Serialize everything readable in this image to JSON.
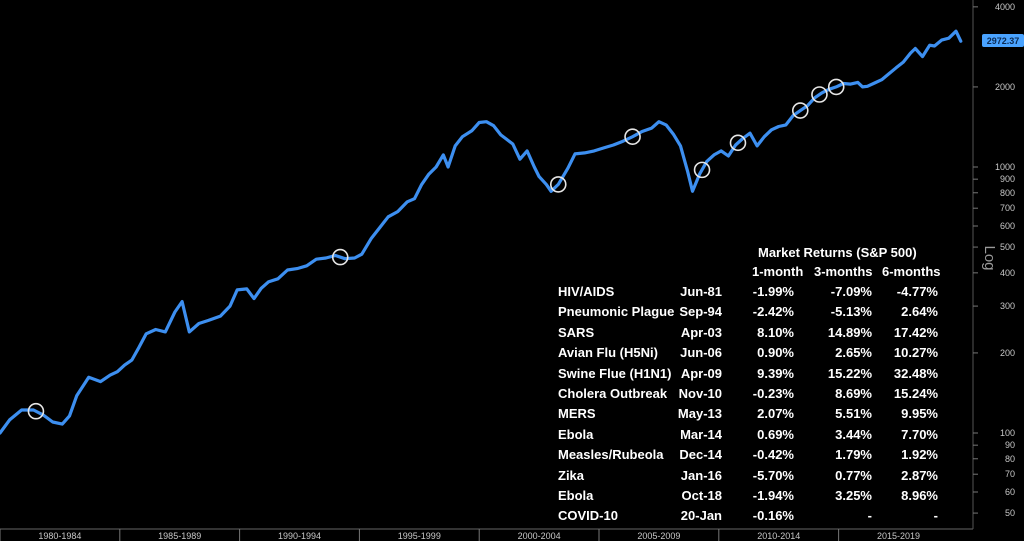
{
  "chart_data": {
    "type": "line",
    "scale": "log",
    "ylim": [
      44,
      4100
    ],
    "yticks": [
      50,
      60,
      70,
      80,
      90,
      100,
      200,
      300,
      400,
      500,
      600,
      700,
      800,
      900,
      1000,
      2000,
      4000
    ],
    "ylabel": "Log",
    "x_periods": [
      "1980-1984",
      "1985-1989",
      "1990-1994",
      "1995-1999",
      "2000-2004",
      "2005-2009",
      "2010-2014",
      "2015-2019"
    ],
    "last_value_label": "2972.37",
    "line_color": "#3d8ff0",
    "series": [
      {
        "x": [
          1980.0,
          1980.4,
          1980.9,
          1981.4,
          1981.8,
          1982.2,
          1982.6,
          1982.9,
          1983.2,
          1983.7,
          1984.2,
          1984.6,
          1984.9,
          1985.2,
          1985.5,
          1985.8,
          1986.1,
          1986.5,
          1986.9,
          1987.3,
          1987.6,
          1987.9,
          1988.3,
          1988.7,
          1989.2,
          1989.6,
          1989.9,
          1990.3,
          1990.6,
          1990.9,
          1991.2,
          1991.6,
          1992.0,
          1992.4,
          1992.8,
          1993.2,
          1993.6,
          1994.0,
          1994.4,
          1994.8,
          1995.1,
          1995.5,
          1995.9,
          1996.2,
          1996.6,
          1997.0,
          1997.3,
          1997.6,
          1997.9,
          1998.2,
          1998.5,
          1998.7,
          1999.0,
          1999.3,
          1999.7,
          2000.0,
          2000.3,
          2000.6,
          2000.9,
          2001.1,
          2001.4,
          2001.7,
          2002.0,
          2002.3,
          2002.5,
          2002.8,
          2003.0,
          2003.3,
          2003.7,
          2004.0,
          2004.4,
          2004.8,
          2005.2,
          2005.6,
          2006.0,
          2006.4,
          2006.8,
          2007.2,
          2007.5,
          2007.8,
          2008.1,
          2008.4,
          2008.7,
          2008.9,
          2009.2,
          2009.5,
          2009.8,
          2010.1,
          2010.4,
          2010.7,
          2011.0,
          2011.3,
          2011.6,
          2011.9,
          2012.2,
          2012.5,
          2012.8,
          2013.1,
          2013.4,
          2013.7,
          2014.0,
          2014.3,
          2014.6,
          2014.9,
          2015.2,
          2015.5,
          2015.8,
          2016.0,
          2016.2,
          2016.5,
          2016.8,
          2017.1,
          2017.4,
          2017.7,
          2018.0,
          2018.2,
          2018.5,
          2018.8,
          2019.0,
          2019.3,
          2019.6,
          2019.9,
          2020.1
        ],
        "y": [
          100,
          112,
          122,
          122,
          117,
          110,
          108,
          116,
          138,
          162,
          156,
          165,
          170,
          180,
          188,
          210,
          236,
          245,
          240,
          285,
          312,
          240,
          258,
          265,
          275,
          300,
          345,
          348,
          320,
          350,
          370,
          380,
          410,
          415,
          425,
          450,
          455,
          465,
          452,
          455,
          470,
          540,
          600,
          650,
          680,
          740,
          760,
          860,
          940,
          1000,
          1110,
          1000,
          1200,
          1300,
          1370,
          1470,
          1480,
          1430,
          1320,
          1280,
          1220,
          1070,
          1150,
          1000,
          920,
          860,
          810,
          860,
          990,
          1120,
          1130,
          1150,
          1180,
          1210,
          1250,
          1300,
          1360,
          1400,
          1480,
          1440,
          1330,
          1200,
          960,
          810,
          940,
          1050,
          1110,
          1150,
          1100,
          1210,
          1280,
          1340,
          1200,
          1300,
          1380,
          1420,
          1440,
          1560,
          1630,
          1700,
          1820,
          1900,
          1960,
          2000,
          2060,
          2050,
          2080,
          2000,
          2010,
          2070,
          2130,
          2240,
          2360,
          2480,
          2680,
          2790,
          2600,
          2870,
          2850,
          3000,
          3050,
          3240,
          2970
        ]
      }
    ],
    "markers": [
      1981.5,
      1994.2,
      2003.3,
      2006.4,
      2009.3,
      2010.8,
      2013.4,
      2014.2,
      2014.9
    ]
  },
  "returns_table": {
    "title": "Market Returns (S&P 500)",
    "columns": [
      "1-month",
      "3-months",
      "6-months"
    ],
    "rows": [
      {
        "event": "HIV/AIDS",
        "date": "Jun-81",
        "m1": "-1.99%",
        "m3": "-7.09%",
        "m6": "-4.77%"
      },
      {
        "event": "Pneumonic Plague",
        "date": "Sep-94",
        "m1": "-2.42%",
        "m3": "-5.13%",
        "m6": "2.64%"
      },
      {
        "event": "SARS",
        "date": "Apr-03",
        "m1": "8.10%",
        "m3": "14.89%",
        "m6": "17.42%"
      },
      {
        "event": "Avian Flu (H5Ni)",
        "date": "Jun-06",
        "m1": "0.90%",
        "m3": "2.65%",
        "m6": "10.27%"
      },
      {
        "event": "Swine Flue (H1N1)",
        "date": "Apr-09",
        "m1": "9.39%",
        "m3": "15.22%",
        "m6": "32.48%"
      },
      {
        "event": "Cholera Outbreak",
        "date": "Nov-10",
        "m1": "-0.23%",
        "m3": "8.69%",
        "m6": "15.24%"
      },
      {
        "event": "MERS",
        "date": "May-13",
        "m1": "2.07%",
        "m3": "5.51%",
        "m6": "9.95%"
      },
      {
        "event": "Ebola",
        "date": "Mar-14",
        "m1": "0.69%",
        "m3": "3.44%",
        "m6": "7.70%"
      },
      {
        "event": "Measles/Rubeola",
        "date": "Dec-14",
        "m1": "-0.42%",
        "m3": "1.79%",
        "m6": "1.92%"
      },
      {
        "event": "Zika",
        "date": "Jan-16",
        "m1": "-5.70%",
        "m3": "0.77%",
        "m6": "2.87%"
      },
      {
        "event": "Ebola",
        "date": "Oct-18",
        "m1": "-1.94%",
        "m3": "3.25%",
        "m6": "8.96%"
      },
      {
        "event": "COVID-10",
        "date": "20-Jan",
        "m1": "-0.16%",
        "m3": "-",
        "m6": "-"
      }
    ]
  }
}
